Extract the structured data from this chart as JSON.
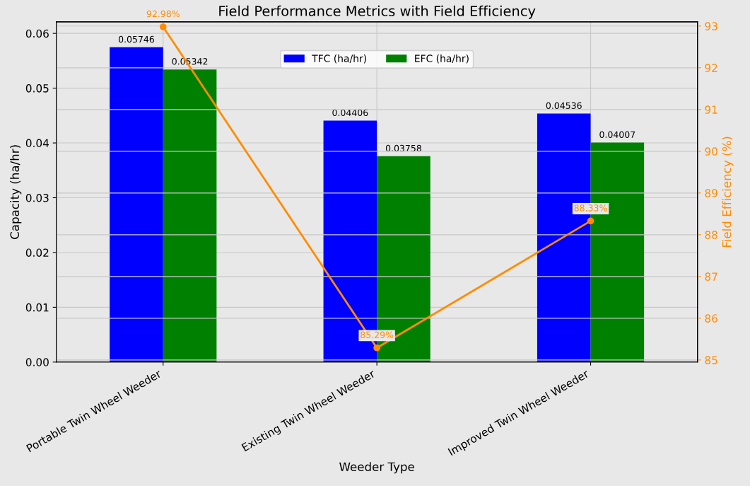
{
  "chart_data": {
    "type": "bar",
    "title": "Field Performance Metrics with Field Efficiency",
    "xlabel": "Weeder Type",
    "ylabel": "Capacity (ha/hr)",
    "y2label": "Field Efficiency (%)",
    "categories": [
      "Portable Twin Wheel Weeder",
      "Existing Twin Wheel Weeder",
      "Improved Twin Wheel Weeder"
    ],
    "series": [
      {
        "name": "TFC (ha/hr)",
        "color": "#0000ff",
        "values": [
          0.05746,
          0.04406,
          0.04536
        ],
        "value_labels": [
          "0.05746",
          "0.04406",
          "0.04536"
        ]
      },
      {
        "name": "EFC (ha/hr)",
        "color": "#008000",
        "values": [
          0.05342,
          0.03758,
          0.04007
        ],
        "value_labels": [
          "0.05342",
          "0.03758",
          "0.04007"
        ]
      },
      {
        "type": "line",
        "axis": "y2",
        "color": "#ff8c00",
        "values": [
          92.98,
          85.29,
          88.33
        ],
        "value_labels": [
          "92.98%",
          "85.29%",
          "88.33%"
        ],
        "marker": "circle"
      }
    ],
    "ylim": [
      0,
      0.0621
    ],
    "yticks": [
      {
        "value": 0,
        "label": "0.00"
      },
      {
        "value": 0.01,
        "label": "0.01"
      },
      {
        "value": 0.02,
        "label": "0.02"
      },
      {
        "value": 0.03,
        "label": "0.03"
      },
      {
        "value": 0.04,
        "label": "0.04"
      },
      {
        "value": 0.05,
        "label": "0.05"
      },
      {
        "value": 0.06,
        "label": "0.06"
      }
    ],
    "y2lim": [
      84.95,
      93.1
    ],
    "y2ticks": [
      85,
      86,
      87,
      88,
      89,
      90,
      91,
      92,
      93
    ],
    "grid": true,
    "legend": "top center"
  }
}
